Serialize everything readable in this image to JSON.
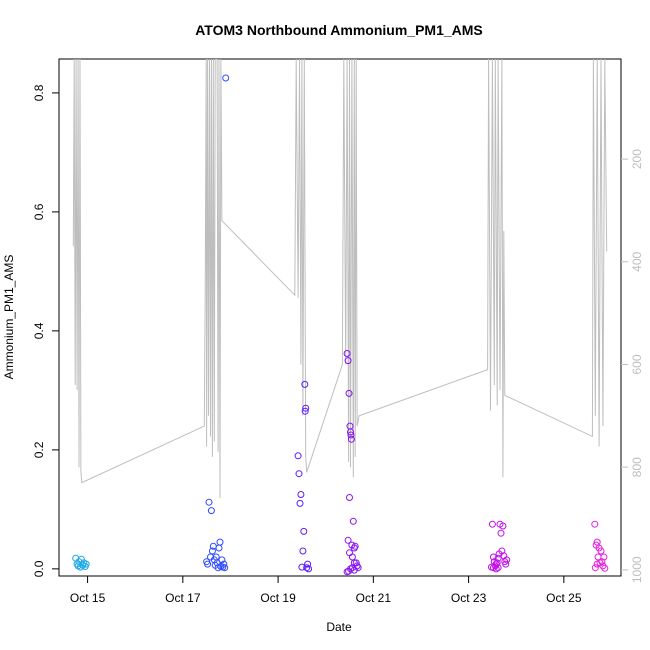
{
  "chart_data": {
    "type": "scatter",
    "title": "ATOM3 Northbound Ammonium_PM1_AMS",
    "xlabel": "Date",
    "ylabel": "Ammonium_PM1_AMS",
    "x_ticks": [
      "Oct 15",
      "Oct 17",
      "Oct 19",
      "Oct 21",
      "Oct 23",
      "Oct 25"
    ],
    "x_tick_values": [
      15,
      17,
      19,
      21,
      23,
      25
    ],
    "xlim": [
      14.4,
      26.2
    ],
    "y_ticks": [
      "0.0",
      "0.2",
      "0.4",
      "0.6",
      "0.8"
    ],
    "y_tick_values": [
      0.0,
      0.2,
      0.4,
      0.6,
      0.8
    ],
    "ylim": [
      -0.012,
      0.857
    ],
    "y2_ticks": [
      "200",
      "400",
      "600",
      "800",
      "1000"
    ],
    "y2_tick_values": [
      200,
      400,
      600,
      800,
      1000
    ],
    "y2lim": [
      1012,
      5
    ],
    "y2_color": "#bebebe",
    "color_by_time": [
      "#1aa6e6",
      "#2f4bff",
      "#5b1cff",
      "#8a12f0",
      "#c010e8",
      "#e61ee0"
    ],
    "points": [
      [
        14.75,
        0.018
      ],
      [
        14.78,
        0.008
      ],
      [
        14.8,
        0.005
      ],
      [
        14.82,
        0.012
      ],
      [
        14.85,
        0.003
      ],
      [
        14.87,
        0.016
      ],
      [
        14.9,
        0.006
      ],
      [
        14.92,
        0.01
      ],
      [
        14.95,
        0.004
      ],
      [
        14.97,
        0.008
      ],
      [
        17.55,
        0.112
      ],
      [
        17.6,
        0.098
      ],
      [
        17.5,
        0.012
      ],
      [
        17.52,
        0.008
      ],
      [
        17.58,
        0.02
      ],
      [
        17.62,
        0.03
      ],
      [
        17.64,
        0.038
      ],
      [
        17.66,
        0.015
      ],
      [
        17.68,
        0.006
      ],
      [
        17.7,
        0.02
      ],
      [
        17.72,
        0.01
      ],
      [
        17.74,
        0.002
      ],
      [
        17.76,
        0.035
      ],
      [
        17.78,
        0.045
      ],
      [
        17.8,
        0.004
      ],
      [
        17.82,
        0.015
      ],
      [
        17.84,
        0.003
      ],
      [
        17.86,
        0.008
      ],
      [
        17.88,
        0.002
      ],
      [
        17.9,
        0.825
      ],
      [
        19.42,
        0.19
      ],
      [
        19.44,
        0.16
      ],
      [
        19.46,
        0.11
      ],
      [
        19.48,
        0.125
      ],
      [
        19.5,
        0.003
      ],
      [
        19.52,
        0.03
      ],
      [
        19.54,
        0.063
      ],
      [
        19.56,
        0.31
      ],
      [
        19.57,
        0.265
      ],
      [
        19.58,
        0.27
      ],
      [
        19.6,
        0.002
      ],
      [
        19.62,
        0.008
      ],
      [
        19.64,
        0.0
      ],
      [
        20.45,
        0.362
      ],
      [
        20.47,
        0.35
      ],
      [
        20.49,
        0.295
      ],
      [
        20.51,
        0.24
      ],
      [
        20.52,
        0.23
      ],
      [
        20.53,
        0.225
      ],
      [
        20.54,
        0.218
      ],
      [
        20.5,
        0.12
      ],
      [
        20.58,
        0.08
      ],
      [
        20.47,
        0.048
      ],
      [
        20.55,
        0.04
      ],
      [
        20.6,
        0.035
      ],
      [
        20.62,
        0.038
      ],
      [
        20.64,
        0.01
      ],
      [
        20.5,
        0.027
      ],
      [
        20.56,
        0.02
      ],
      [
        20.6,
        0.01
      ],
      [
        20.45,
        -0.005
      ],
      [
        20.48,
        -0.004
      ],
      [
        20.52,
        0.0
      ],
      [
        20.56,
        0.002
      ],
      [
        20.6,
        -0.002
      ],
      [
        20.66,
        0.005
      ],
      [
        20.68,
        0.002
      ],
      [
        23.5,
        0.075
      ],
      [
        23.52,
        0.02
      ],
      [
        23.54,
        0.012
      ],
      [
        23.56,
        0.005
      ],
      [
        23.58,
        0.0
      ],
      [
        23.6,
        0.01
      ],
      [
        23.62,
        0.018
      ],
      [
        23.64,
        0.025
      ],
      [
        23.66,
        0.075
      ],
      [
        23.68,
        0.06
      ],
      [
        23.7,
        0.03
      ],
      [
        23.72,
        0.072
      ],
      [
        23.74,
        0.022
      ],
      [
        23.76,
        0.012
      ],
      [
        23.78,
        0.008
      ],
      [
        23.8,
        0.015
      ],
      [
        23.48,
        0.003
      ],
      [
        23.52,
        0.002
      ],
      [
        23.58,
        0.008
      ],
      [
        23.62,
        0.002
      ],
      [
        25.65,
        0.075
      ],
      [
        25.68,
        0.04
      ],
      [
        25.7,
        0.045
      ],
      [
        25.72,
        0.02
      ],
      [
        25.74,
        0.035
      ],
      [
        25.76,
        0.01
      ],
      [
        25.78,
        0.03
      ],
      [
        25.8,
        0.012
      ],
      [
        25.82,
        0.005
      ],
      [
        25.84,
        0.02
      ],
      [
        25.86,
        0.001
      ],
      [
        25.66,
        0.002
      ],
      [
        25.7,
        0.008
      ]
    ],
    "altitude_series": [
      [
        14.7,
        370
      ],
      [
        14.72,
        5
      ],
      [
        14.74,
        640
      ],
      [
        14.76,
        5
      ],
      [
        14.78,
        650
      ],
      [
        14.8,
        5
      ],
      [
        14.82,
        800
      ],
      [
        14.84,
        5
      ],
      [
        14.86,
        810
      ],
      [
        14.88,
        830
      ],
      [
        17.45,
        720
      ],
      [
        17.47,
        460
      ],
      [
        17.49,
        5
      ],
      [
        17.5,
        760
      ],
      [
        17.52,
        5
      ],
      [
        17.54,
        700
      ],
      [
        17.56,
        5
      ],
      [
        17.58,
        740
      ],
      [
        17.6,
        5
      ],
      [
        17.62,
        780
      ],
      [
        17.64,
        5
      ],
      [
        17.66,
        750
      ],
      [
        17.68,
        5
      ],
      [
        17.72,
        5
      ],
      [
        17.74,
        770
      ],
      [
        17.76,
        5
      ],
      [
        17.78,
        860
      ],
      [
        17.8,
        5
      ],
      [
        17.82,
        320
      ],
      [
        19.35,
        465
      ],
      [
        19.38,
        5
      ],
      [
        19.42,
        470
      ],
      [
        19.45,
        5
      ],
      [
        19.48,
        600
      ],
      [
        19.5,
        5
      ],
      [
        19.52,
        700
      ],
      [
        19.55,
        5
      ],
      [
        19.58,
        780
      ],
      [
        19.6,
        810
      ],
      [
        20.35,
        600
      ],
      [
        20.38,
        5
      ],
      [
        20.42,
        600
      ],
      [
        20.45,
        5
      ],
      [
        20.48,
        790
      ],
      [
        20.5,
        5
      ],
      [
        20.52,
        800
      ],
      [
        20.55,
        5
      ],
      [
        20.58,
        820
      ],
      [
        20.6,
        5
      ],
      [
        20.62,
        780
      ],
      [
        20.64,
        5
      ],
      [
        20.66,
        720
      ],
      [
        20.7,
        700
      ],
      [
        23.4,
        610
      ],
      [
        23.42,
        5
      ],
      [
        23.46,
        690
      ],
      [
        23.5,
        5
      ],
      [
        23.54,
        640
      ],
      [
        23.56,
        5
      ],
      [
        23.6,
        680
      ],
      [
        23.62,
        5
      ],
      [
        23.66,
        650
      ],
      [
        23.7,
        5
      ],
      [
        23.72,
        820
      ],
      [
        23.74,
        340
      ],
      [
        23.76,
        660
      ],
      [
        25.6,
        740
      ],
      [
        25.62,
        5
      ],
      [
        25.66,
        700
      ],
      [
        25.7,
        5
      ],
      [
        25.74,
        760
      ],
      [
        25.78,
        5
      ],
      [
        25.82,
        720
      ],
      [
        25.86,
        5
      ],
      [
        25.9,
        380
      ]
    ]
  }
}
